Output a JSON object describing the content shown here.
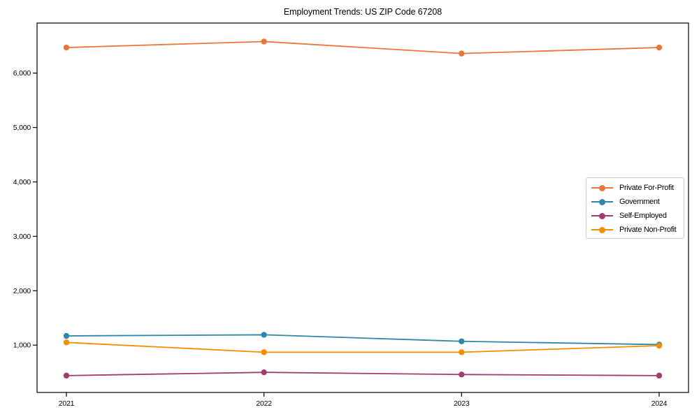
{
  "title": "Employment Trends: US ZIP Code 67208",
  "chart_data": {
    "type": "line",
    "title": "Employment Trends: US ZIP Code 67208",
    "xlabel": "",
    "ylabel": "",
    "x": [
      2021,
      2022,
      2023,
      2024
    ],
    "xtick_labels": [
      "2021",
      "2022",
      "2023",
      "2024"
    ],
    "yticks": [
      1000,
      2000,
      3000,
      4000,
      5000,
      6000
    ],
    "ytick_labels": [
      "1,000",
      "2,000",
      "3,000",
      "4,000",
      "5,000",
      "6,000"
    ],
    "ylim": [
      130,
      6920
    ],
    "grid": false,
    "legend_position": "center right",
    "marker": "circle",
    "series": [
      {
        "name": "Private For-Profit",
        "color": "#E8773B",
        "values": [
          6470,
          6580,
          6360,
          6470
        ]
      },
      {
        "name": "Government",
        "color": "#2E86AB",
        "values": [
          1170,
          1190,
          1070,
          1010
        ]
      },
      {
        "name": "Self-Employed",
        "color": "#A23B72",
        "values": [
          440,
          500,
          460,
          440
        ]
      },
      {
        "name": "Private Non-Profit",
        "color": "#F18F01",
        "values": [
          1050,
          870,
          870,
          990
        ]
      }
    ],
    "axis_color": "#000000",
    "background_color": "#ffffff"
  }
}
